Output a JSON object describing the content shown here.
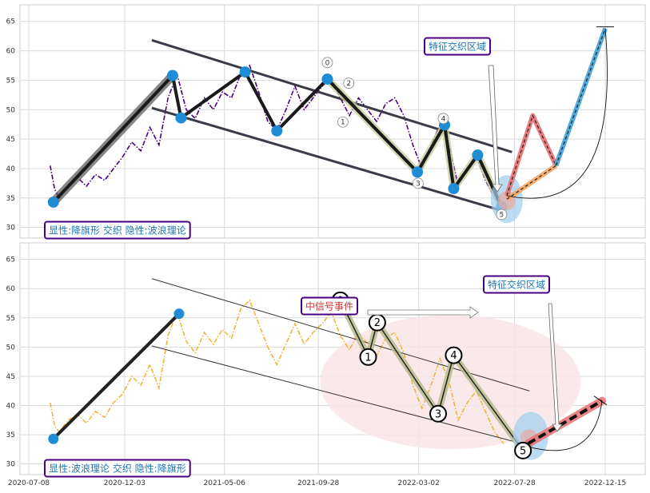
{
  "chart_data": [
    {
      "type": "line",
      "panel": "top",
      "ylim": [
        29,
        67
      ],
      "yticks": [
        30,
        35,
        40,
        45,
        50,
        55,
        60,
        65
      ],
      "grid": true,
      "price_color": "#4b0082",
      "price_style": "dash-dot",
      "price_series": [
        [
          "2020-08-10",
          40.5
        ],
        [
          "2020-08-17",
          36.5
        ],
        [
          "2020-08-24",
          35.0
        ],
        [
          "2020-09-07",
          37.0
        ],
        [
          "2020-09-21",
          38.5
        ],
        [
          "2020-10-05",
          37.0
        ],
        [
          "2020-10-19",
          39.0
        ],
        [
          "2020-11-02",
          38.0
        ],
        [
          "2020-11-16",
          40.0
        ],
        [
          "2020-11-30",
          42.0
        ],
        [
          "2020-12-14",
          44.5
        ],
        [
          "2020-12-28",
          43.0
        ],
        [
          "2021-01-11",
          47.0
        ],
        [
          "2021-01-25",
          44.0
        ],
        [
          "2021-02-08",
          52.0
        ],
        [
          "2021-02-22",
          56.0
        ],
        [
          "2021-03-08",
          50.0
        ],
        [
          "2021-03-22",
          48.5
        ],
        [
          "2021-04-05",
          52.0
        ],
        [
          "2021-04-19",
          50.0
        ],
        [
          "2021-05-03",
          53.0
        ],
        [
          "2021-05-17",
          52.0
        ],
        [
          "2021-05-31",
          56.0
        ],
        [
          "2021-06-14",
          57.5
        ],
        [
          "2021-06-28",
          53.0
        ],
        [
          "2021-07-12",
          48.0
        ],
        [
          "2021-07-26",
          46.5
        ],
        [
          "2021-08-09",
          50.0
        ],
        [
          "2021-08-23",
          54.0
        ],
        [
          "2021-09-06",
          50.0
        ],
        [
          "2021-09-20",
          52.0
        ],
        [
          "2021-10-04",
          54.0
        ],
        [
          "2021-10-18",
          55.5
        ],
        [
          "2021-11-01",
          52.0
        ],
        [
          "2021-11-15",
          49.0
        ],
        [
          "2021-11-29",
          52.0
        ],
        [
          "2021-12-13",
          50.0
        ],
        [
          "2021-12-27",
          48.0
        ],
        [
          "2022-01-10",
          51.0
        ],
        [
          "2022-01-24",
          52.0
        ],
        [
          "2022-02-07",
          49.0
        ],
        [
          "2022-02-21",
          44.0
        ],
        [
          "2022-03-07",
          40.0
        ],
        [
          "2022-03-21",
          44.0
        ],
        [
          "2022-04-04",
          47.5
        ],
        [
          "2022-04-18",
          44.0
        ],
        [
          "2022-05-02",
          37.0
        ],
        [
          "2022-05-16",
          40.0
        ],
        [
          "2022-05-30",
          42.0
        ],
        [
          "2022-06-13",
          38.0
        ],
        [
          "2022-06-27",
          35.0
        ],
        [
          "2022-07-11",
          33.5
        ]
      ],
      "wave_path": [
        [
          "2020-08-15",
          34.3
        ],
        [
          "2021-02-15",
          55.8
        ],
        [
          "2021-02-28",
          48.6
        ],
        [
          "2021-06-07",
          56.4
        ],
        [
          "2021-07-26",
          46.4
        ],
        [
          "2021-10-12",
          55.2
        ],
        [
          "2022-02-28",
          39.4
        ],
        [
          "2022-04-11",
          47.4
        ],
        [
          "2022-04-25",
          36.6
        ],
        [
          "2022-06-01",
          42.3
        ],
        [
          "2022-07-08",
          33.5
        ]
      ],
      "highlight_segment": [
        [
          "2020-08-15",
          34.3
        ],
        [
          "2021-02-15",
          55.8
        ]
      ],
      "wave_markers": [
        [
          "2020-08-15",
          34.3
        ],
        [
          "2021-02-15",
          55.8
        ],
        [
          "2021-02-28",
          48.6
        ],
        [
          "2021-06-07",
          56.4
        ],
        [
          "2021-07-26",
          46.4
        ],
        [
          "2021-10-12",
          55.2
        ],
        [
          "2022-02-28",
          39.4
        ],
        [
          "2022-04-11",
          47.4
        ],
        [
          "2022-04-25",
          36.6
        ],
        [
          "2022-06-01",
          42.3
        ],
        [
          "2022-07-08",
          33.5
        ]
      ],
      "channel_upper": [
        [
          "2021-01-14",
          61.8
        ],
        [
          "2022-07-24",
          42.8
        ]
      ],
      "channel_lower": [
        [
          "2021-01-14",
          50.3
        ],
        [
          "2022-07-10",
          32.8
        ]
      ],
      "wave_labels": [
        {
          "label": "0",
          "date": "2021-10-12",
          "y": 58.0
        },
        {
          "label": "1",
          "date": "2021-11-05",
          "y": 47.9
        },
        {
          "label": "2",
          "date": "2021-11-14",
          "y": 54.5
        },
        {
          "label": "3",
          "date": "2022-03-01",
          "y": 37.5
        },
        {
          "label": "4",
          "date": "2022-04-09",
          "y": 48.5
        },
        {
          "label": "5",
          "date": "2022-07-08",
          "y": 32.2
        }
      ],
      "projection_paths": [
        {
          "color": "#e76f6f",
          "points": [
            [
              "2022-07-16",
              35.4
            ],
            [
              "2022-08-25",
              49.0
            ],
            [
              "2022-09-30",
              40.5
            ]
          ]
        },
        {
          "color": "#f4a460",
          "points": [
            [
              "2022-07-16",
              34.8
            ],
            [
              "2022-09-30",
              40.5
            ]
          ]
        },
        {
          "color": "#3ea0d8",
          "points": [
            [
              "2022-09-30",
              40.5
            ],
            [
              "2022-12-15",
              63.8
            ]
          ]
        }
      ],
      "intersect_ellipse": {
        "date": "2022-07-16",
        "y": 34.8
      },
      "labels": [
        {
          "text": "显性:降旗形 交织 隐性:波浪理论",
          "color": "#1f77b4",
          "border": "#4b0082"
        },
        {
          "text": "特征交织区域",
          "color": "#1f77b4",
          "border": "#4b0082"
        }
      ]
    },
    {
      "type": "line",
      "panel": "bottom",
      "ylim": [
        29,
        67
      ],
      "yticks": [
        30,
        35,
        40,
        45,
        50,
        55,
        60,
        65
      ],
      "grid": true,
      "price_color": "#f0b63c",
      "price_style": "dash-dot",
      "price_series": [
        [
          "2020-08-10",
          40.5
        ],
        [
          "2020-08-17",
          36.5
        ],
        [
          "2020-08-24",
          35.5
        ],
        [
          "2020-09-07",
          37.5
        ],
        [
          "2020-09-21",
          38.5
        ],
        [
          "2020-10-05",
          37.0
        ],
        [
          "2020-10-19",
          39.0
        ],
        [
          "2020-11-02",
          38.0
        ],
        [
          "2020-11-16",
          40.5
        ],
        [
          "2020-11-30",
          42.0
        ],
        [
          "2020-12-14",
          45.0
        ],
        [
          "2020-12-28",
          43.5
        ],
        [
          "2021-01-11",
          47.0
        ],
        [
          "2021-01-25",
          43.0
        ],
        [
          "2021-02-08",
          52.0
        ],
        [
          "2021-02-22",
          56.0
        ],
        [
          "2021-03-08",
          51.0
        ],
        [
          "2021-03-22",
          49.0
        ],
        [
          "2021-04-05",
          52.5
        ],
        [
          "2021-04-19",
          50.5
        ],
        [
          "2021-05-03",
          53.0
        ],
        [
          "2021-05-17",
          51.5
        ],
        [
          "2021-05-31",
          56.5
        ],
        [
          "2021-06-14",
          58.0
        ],
        [
          "2021-06-28",
          54.0
        ],
        [
          "2021-07-12",
          50.0
        ],
        [
          "2021-07-26",
          47.0
        ],
        [
          "2021-08-09",
          50.5
        ],
        [
          "2021-08-23",
          54.0
        ],
        [
          "2021-09-06",
          50.5
        ],
        [
          "2021-09-20",
          52.5
        ],
        [
          "2021-10-04",
          54.0
        ],
        [
          "2021-10-18",
          56.0
        ],
        [
          "2021-11-01",
          52.0
        ],
        [
          "2021-11-15",
          49.5
        ],
        [
          "2021-11-29",
          52.5
        ],
        [
          "2021-12-13",
          50.5
        ],
        [
          "2021-12-27",
          48.5
        ],
        [
          "2022-01-10",
          51.5
        ],
        [
          "2022-01-24",
          52.5
        ],
        [
          "2022-02-07",
          49.0
        ],
        [
          "2022-02-21",
          43.5
        ],
        [
          "2022-03-07",
          39.5
        ],
        [
          "2022-03-21",
          43.5
        ],
        [
          "2022-04-04",
          48.0
        ],
        [
          "2022-04-18",
          44.0
        ],
        [
          "2022-05-02",
          37.5
        ],
        [
          "2022-05-16",
          40.5
        ],
        [
          "2022-05-30",
          42.5
        ],
        [
          "2022-06-13",
          39.0
        ],
        [
          "2022-06-27",
          35.5
        ],
        [
          "2022-07-11",
          33.5
        ]
      ],
      "flag_pole": [
        [
          "2020-08-15",
          34.3
        ],
        [
          "2021-02-25",
          55.7
        ]
      ],
      "pole_markers": [
        [
          "2020-08-15",
          34.3
        ],
        [
          "2021-02-25",
          55.7
        ]
      ],
      "channel_upper": [
        [
          "2021-01-14",
          61.7
        ],
        [
          "2022-08-20",
          42.5
        ]
      ],
      "channel_lower": [
        [
          "2021-01-14",
          50.2
        ],
        [
          "2022-08-25",
          33.0
        ]
      ],
      "wave_path": [
        [
          "2021-11-01",
          58.0
        ],
        [
          "2021-12-14",
          48.3
        ],
        [
          "2021-12-28",
          54.2
        ],
        [
          "2022-04-01",
          38.6
        ],
        [
          "2022-04-25",
          48.6
        ],
        [
          "2022-08-10",
          32.3
        ]
      ],
      "wave_labels": [
        {
          "label": "0",
          "date": "2021-11-01",
          "y": 58.0
        },
        {
          "label": "1",
          "date": "2021-12-14",
          "y": 48.3
        },
        {
          "label": "2",
          "date": "2021-12-28",
          "y": 54.2
        },
        {
          "label": "3",
          "date": "2022-04-01",
          "y": 38.6
        },
        {
          "label": "4",
          "date": "2022-04-25",
          "y": 48.6
        },
        {
          "label": "5",
          "date": "2022-08-10",
          "y": 32.3
        }
      ],
      "wave_region": {
        "date": "2022-04-20",
        "y": 44.0
      },
      "projection_paths": [
        {
          "color": "#e76f6f",
          "points": [
            [
              "2022-08-18",
              33.5
            ],
            [
              "2022-12-10",
              40.8
            ]
          ]
        }
      ],
      "intersect_ellipse": {
        "date": "2022-08-22",
        "y": 34.8
      },
      "labels": [
        {
          "text": "显性:波浪理论 交织 隐性:降旗形",
          "color": "#1f77b4",
          "border": "#4b0082"
        },
        {
          "text": "特征交织区域",
          "color": "#1f77b4",
          "border": "#4b0082"
        },
        {
          "text": "中信号事件",
          "color": "#cc3333",
          "border": "#4b0082"
        }
      ]
    }
  ],
  "x_axis": {
    "range": [
      "2020-07-08",
      "2022-12-31"
    ],
    "ticks": [
      "2020-07-08",
      "2020-12-03",
      "2021-05-06",
      "2021-09-28",
      "2022-03-02",
      "2022-07-28",
      "2022-12-15"
    ]
  }
}
